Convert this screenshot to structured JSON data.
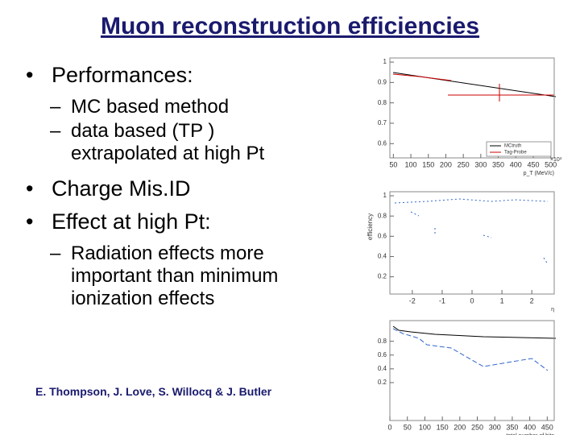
{
  "title": "Muon reconstruction efficiencies",
  "bullets": [
    {
      "text": "Performances:",
      "sub": [
        "MC based method",
        "data based (TP ) extrapolated at high Pt"
      ]
    },
    {
      "text": "Charge Mis.ID"
    },
    {
      "text": "Effect at high Pt:",
      "sub": [
        "Radiation effects more important than minimum ionization effects"
      ]
    }
  ],
  "authors": "E. Thompson, J. Love, S. Willocq & J. Butler",
  "plots": [
    {
      "ylim": [
        0.53,
        1.02
      ],
      "yticks": [
        1,
        0.9,
        0.8,
        0.7,
        0.6
      ],
      "xlim": [
        40,
        510
      ],
      "xticks": [
        50,
        100,
        150,
        200,
        250,
        300,
        350,
        400,
        450,
        500
      ],
      "xmult": "×10³",
      "xlabel": "p_T (MeV/c)",
      "legend": [
        "MCtruth",
        "Tag-Probe"
      ]
    },
    {
      "ylim": [
        0.03,
        1.04
      ],
      "yticks": [
        1,
        0.8,
        0.6,
        0.4,
        0.2
      ],
      "xlim": [
        -2.75,
        2.75
      ],
      "xticks": [
        -2,
        -1,
        0,
        1,
        2
      ],
      "xlabel": "η",
      "ylabel": "efficiency"
    },
    {
      "ylim": [
        -0.35,
        1.1
      ],
      "yticks": [
        0.8,
        0.6,
        0.4,
        0.2
      ],
      "xlim": [
        0,
        470
      ],
      "xticks": [
        0,
        50,
        100,
        150,
        200,
        250,
        300,
        350,
        400,
        450
      ],
      "xlabel": "total number of hits"
    }
  ]
}
